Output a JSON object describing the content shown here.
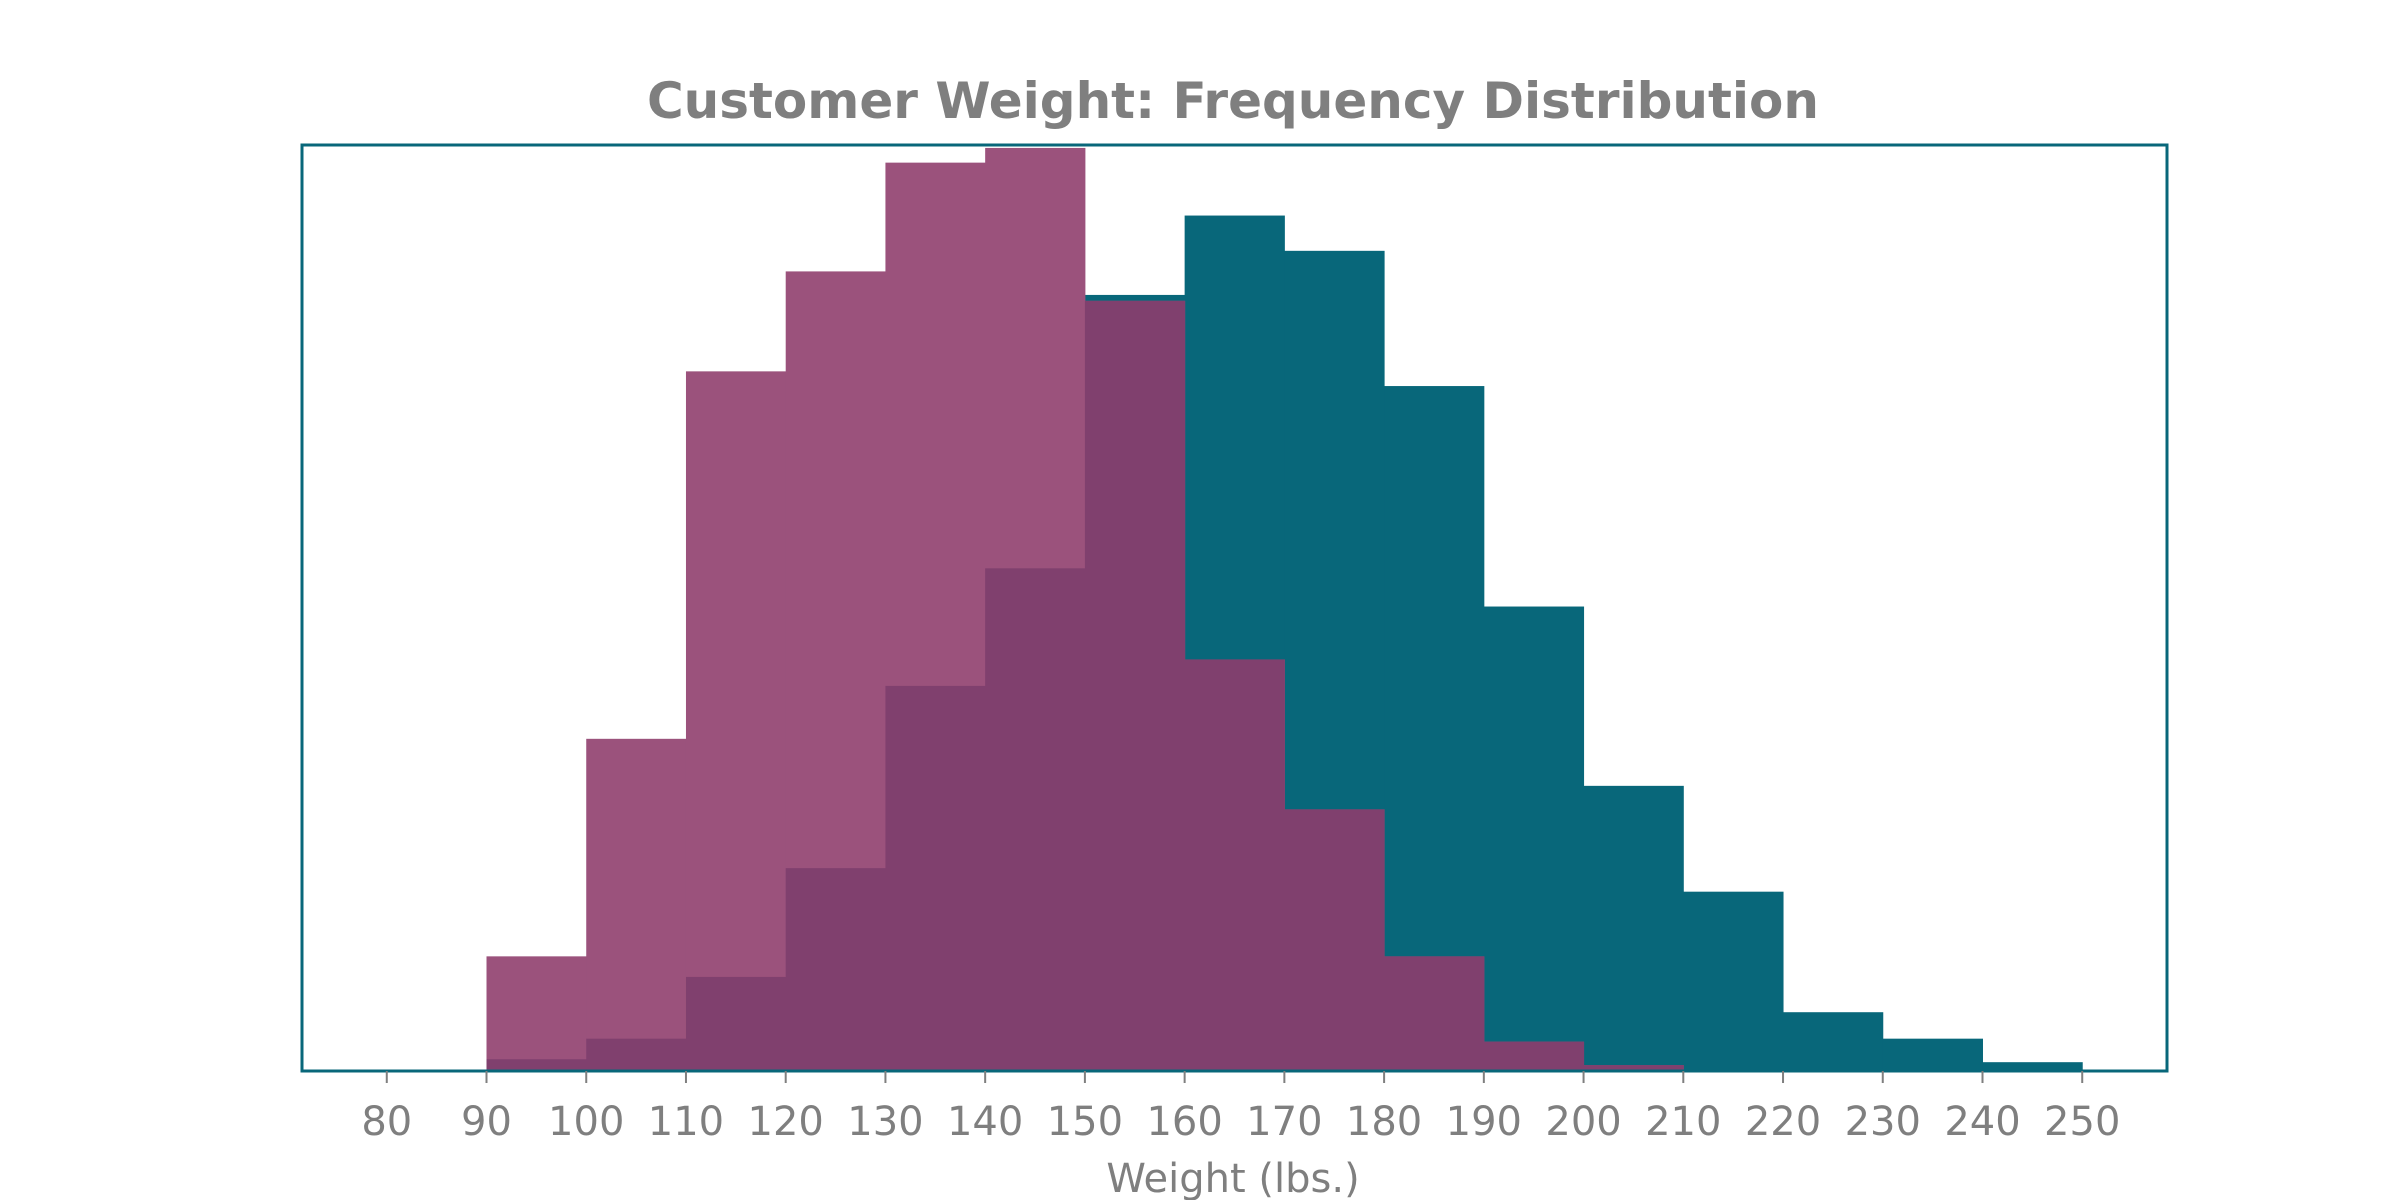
{
  "chart_data": {
    "type": "bar",
    "subtype": "overlapping-histogram",
    "title": "Customer Weight: Frequency Distribution",
    "xlabel": "Weight (lbs.)",
    "ylabel": "",
    "xlim": [
      71.5,
      258.5
    ],
    "ylim": [
      0,
      315
    ],
    "x_ticks": [
      80,
      90,
      100,
      110,
      120,
      130,
      140,
      150,
      160,
      170,
      180,
      190,
      200,
      210,
      220,
      230,
      240,
      250
    ],
    "y_axis_visible": false,
    "grid": false,
    "legend": "none",
    "colors": {
      "series_1": "#08677a",
      "series_2": "#9b527c",
      "overlap": "#80406e",
      "frame": "#08677a",
      "text": "#7f7f7f"
    },
    "series": [
      {
        "bin_edges": [
          90,
          100,
          110,
          120,
          130,
          140,
          150,
          160,
          170,
          180,
          190,
          200,
          210,
          220,
          230,
          240,
          250
        ],
        "values": [
          4,
          11,
          32,
          69,
          131,
          171,
          264,
          291,
          279,
          233,
          158,
          97,
          61,
          20,
          11,
          3
        ]
      },
      {
        "bin_edges": [
          90,
          100,
          110,
          120,
          130,
          140,
          150,
          160,
          170,
          180,
          190,
          200,
          210
        ],
        "values": [
          39,
          113,
          238,
          272,
          309,
          314,
          262,
          140,
          89,
          39,
          10,
          2
        ]
      }
    ]
  }
}
